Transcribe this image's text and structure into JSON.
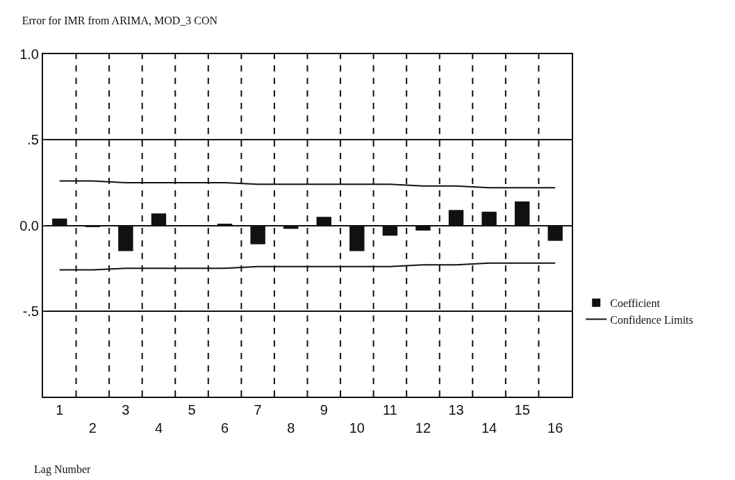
{
  "chart_data": {
    "type": "bar",
    "title": "Error for IMR from ARIMA, MOD_3 CON",
    "xlabel": "Lag Number",
    "categories": [
      "1",
      "2",
      "3",
      "4",
      "5",
      "6",
      "7",
      "8",
      "9",
      "10",
      "11",
      "12",
      "13",
      "14",
      "15",
      "16"
    ],
    "series": [
      {
        "name": "Coefficient",
        "color": "#111111",
        "values": [
          0.04,
          -0.01,
          -0.15,
          0.07,
          0,
          0.01,
          -0.11,
          -0.02,
          0.05,
          -0.15,
          -0.06,
          -0.03,
          0.09,
          0.08,
          0.14,
          -0.09
        ]
      },
      {
        "name": "Confidence Limits",
        "type": "line",
        "color": "#111111",
        "values": [
          0.26,
          0.26,
          0.25,
          0.25,
          0.25,
          0.25,
          0.24,
          0.24,
          0.24,
          0.24,
          0.24,
          0.23,
          0.23,
          0.22,
          0.22,
          0.22
        ]
      },
      {
        "type": "line",
        "color": "#111111",
        "values": [
          -0.26,
          -0.26,
          -0.25,
          -0.25,
          -0.25,
          -0.25,
          -0.24,
          -0.24,
          -0.24,
          -0.24,
          -0.24,
          -0.23,
          -0.23,
          -0.22,
          -0.22,
          -0.22
        ]
      }
    ],
    "ylim": [
      -1,
      1
    ],
    "yticks": [
      {
        "value": -1,
        "label": null
      },
      {
        "value": -0.5,
        "label": "-.5"
      },
      {
        "value": 0,
        "label": "0.0"
      },
      {
        "value": 0.5,
        "label": ".5"
      },
      {
        "value": 1,
        "label": "1.0"
      }
    ],
    "grid": true,
    "legend": "right",
    "marker": "none",
    "line_style": "solid"
  }
}
